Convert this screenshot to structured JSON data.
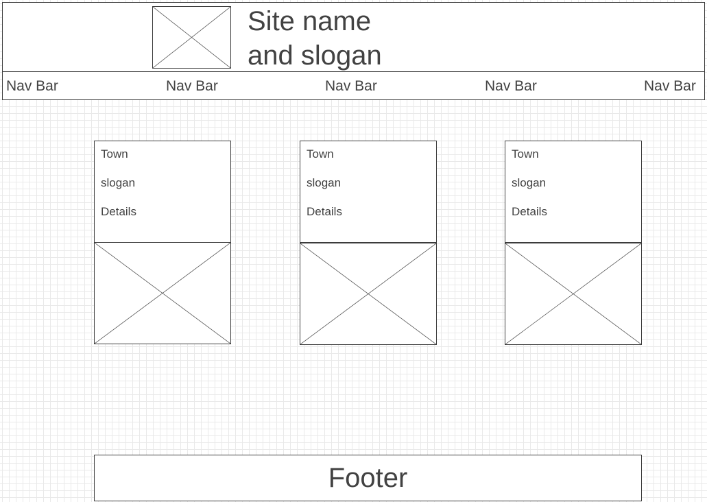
{
  "header": {
    "site_title_line1": "Site name",
    "site_title_line2": "and slogan",
    "logo_icon": "image-placeholder-icon"
  },
  "nav": {
    "items": [
      "Nav Bar",
      "Nav Bar",
      "Nav Bar",
      "Nav Bar",
      "Nav Bar"
    ]
  },
  "cards": [
    {
      "title": "Town",
      "slogan": "slogan",
      "details": "Details",
      "image_icon": "image-placeholder-icon"
    },
    {
      "title": "Town",
      "slogan": "slogan",
      "details": "Details",
      "image_icon": "image-placeholder-icon"
    },
    {
      "title": "Town",
      "slogan": "slogan",
      "details": "Details",
      "image_icon": "image-placeholder-icon"
    }
  ],
  "footer": {
    "label": "Footer"
  },
  "colors": {
    "stroke": "#3c3c3c",
    "text": "#424242",
    "grid": "#e9e9e9",
    "background": "#ffffff"
  }
}
